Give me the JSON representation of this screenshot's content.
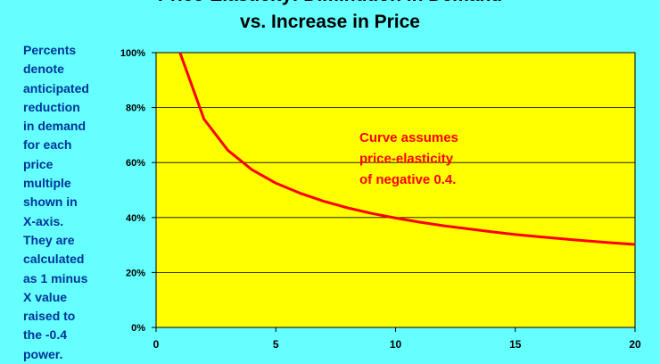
{
  "title_lines": [
    "Price-Elasticity: Diminution in Demand",
    "vs. Increase in Price"
  ],
  "side_note_lines": [
    "Percents",
    "denote",
    "anticipated",
    "reduction",
    "in demand",
    "for each",
    "price",
    "multiple",
    "shown in",
    "X-axis.",
    "They are",
    "calculated",
    "as 1 minus",
    "X value",
    "raised to",
    "the -0.4",
    "power."
  ],
  "colors": {
    "background": "#66FFFF",
    "plot_area": "#FFFF00",
    "curve": "#FF0000",
    "annotation": "#FF0000",
    "side_note": "#003399",
    "grid": "#000000"
  },
  "chart_data": {
    "type": "line",
    "title": "Price-Elasticity: Diminution in Demand vs. Increase in Price",
    "xlabel": "",
    "ylabel": "",
    "xlim": [
      0,
      20
    ],
    "ylim": [
      0,
      100
    ],
    "x_ticks": [
      0,
      5,
      10,
      15,
      20
    ],
    "y_ticks": [
      0,
      20,
      40,
      60,
      80,
      100
    ],
    "y_tick_labels": [
      "0%",
      "20%",
      "40%",
      "60%",
      "80%",
      "100%"
    ],
    "grid": "horizontal",
    "legend": "none",
    "series": [
      {
        "x": [
          1,
          2,
          3,
          4,
          5,
          6,
          7,
          8,
          9,
          10,
          11,
          12,
          13,
          14,
          15,
          16,
          17,
          18,
          19,
          20
        ],
        "values": [
          100,
          75.8,
          64.4,
          57.4,
          52.5,
          48.9,
          45.9,
          43.5,
          41.5,
          39.8,
          38.3,
          37.0,
          35.9,
          34.8,
          33.8,
          33.0,
          32.2,
          31.5,
          30.8,
          30.2
        ]
      }
    ],
    "annotation": [
      "Curve assumes",
      "price-elasticity",
      "of negative 0.4."
    ]
  }
}
